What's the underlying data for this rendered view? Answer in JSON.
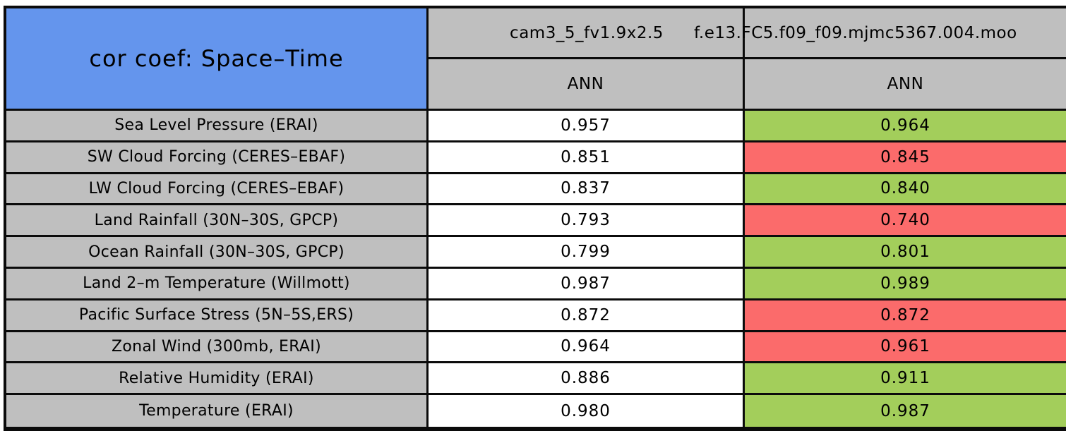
{
  "chart_data": {
    "type": "table",
    "title": "cor coef: Space–Time",
    "col_headers": [
      {
        "model": "cam3_5_fv1.9x2.5",
        "season": "ANN"
      },
      {
        "model": "f.e13.FC5.f09_f09.mjmc5367.004.moo",
        "season": "ANN"
      }
    ],
    "rows": [
      {
        "label": "Sea Level Pressure (ERAI)",
        "v1": "0.957",
        "v2": "0.964",
        "v2_color": "green"
      },
      {
        "label": "SW Cloud Forcing (CERES–EBAF)",
        "v1": "0.851",
        "v2": "0.845",
        "v2_color": "red"
      },
      {
        "label": "LW Cloud Forcing (CERES–EBAF)",
        "v1": "0.837",
        "v2": "0.840",
        "v2_color": "green"
      },
      {
        "label": "Land Rainfall (30N–30S, GPCP)",
        "v1": "0.793",
        "v2": "0.740",
        "v2_color": "red"
      },
      {
        "label": "Ocean Rainfall (30N–30S, GPCP)",
        "v1": "0.799",
        "v2": "0.801",
        "v2_color": "green"
      },
      {
        "label": "Land 2–m Temperature (Willmott)",
        "v1": "0.987",
        "v2": "0.989",
        "v2_color": "green"
      },
      {
        "label": "Pacific Surface Stress (5N–5S,ERS)",
        "v1": "0.872",
        "v2": "0.872",
        "v2_color": "red"
      },
      {
        "label": "Zonal Wind (300mb, ERAI)",
        "v1": "0.964",
        "v2": "0.961",
        "v2_color": "red"
      },
      {
        "label": "Relative Humidity (ERAI)",
        "v1": "0.886",
        "v2": "0.911",
        "v2_color": "green"
      },
      {
        "label": "Temperature (ERAI)",
        "v1": "0.980",
        "v2": "0.987",
        "v2_color": "green"
      }
    ],
    "colors": {
      "title_bg": "#6495ed",
      "header_bg": "#bfbfbf",
      "row_label_bg": "#bfbfbf",
      "value_bg": "#ffffff",
      "green": "#a3ce5b",
      "red": "#fb6b6b",
      "border": "#0b0b0b"
    },
    "layout": {
      "grid": "on",
      "legend": "none"
    }
  }
}
